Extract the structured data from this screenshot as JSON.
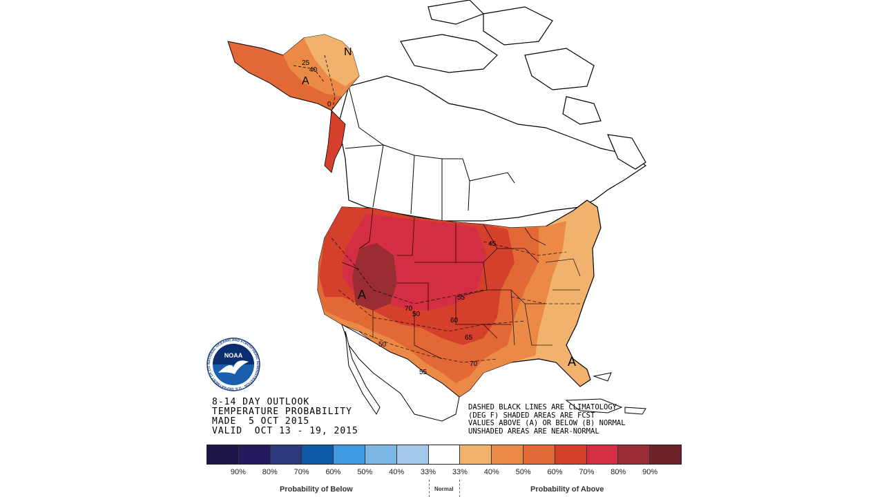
{
  "title": {
    "lines": [
      "8-14 DAY OUTLOOK",
      "TEMPERATURE PROBABILITY",
      "MADE  5 OCT 2015",
      "VALID  OCT 13 - 19, 2015"
    ]
  },
  "note": {
    "lines": [
      "DASHED BLACK LINES ARE CLIMATOLOGY",
      "(DEG F) SHADED AREAS ARE FCST",
      "VALUES ABOVE (A) OR BELOW (B) NORMAL",
      "UNSHADED AREAS ARE NEAR-NORMAL"
    ]
  },
  "logo": {
    "text": "NOAA",
    "ring": "NATIONAL OCEANIC AND ATMOSPHERIC ADMINISTRATION · U.S. DEPARTMENT OF COMMERCE"
  },
  "map_labels": {
    "n_ak": "N",
    "a_ak": "A",
    "a_west": "A",
    "a_fl": "A",
    "c25": "25",
    "c40": "40",
    "c0": "0",
    "c45": "45",
    "c55": "55",
    "c70a": "70",
    "c50a": "50",
    "c60": "60",
    "c65": "65",
    "c70b": "70",
    "c50b": "50",
    "c55b": "55"
  },
  "legend": {
    "colors": [
      "#1c1548",
      "#241a5e",
      "#2c3a7e",
      "#0e5aa8",
      "#3c9be0",
      "#7ab6e6",
      "#a4c8ea",
      "#ffffff",
      "#f0b26c",
      "#ea8a46",
      "#e26836",
      "#d4402c",
      "#d42e44",
      "#9a2c34",
      "#6c2228"
    ],
    "labels": [
      "90%",
      "80%",
      "70%",
      "60%",
      "50%",
      "40%",
      "33%",
      "33%",
      "40%",
      "50%",
      "60%",
      "70%",
      "80%",
      "90%"
    ],
    "below": "Probability of Below",
    "normal": "Normal",
    "above": "Probability of Above"
  }
}
